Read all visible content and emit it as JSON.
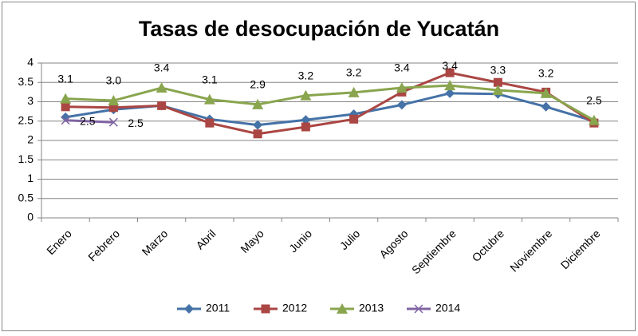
{
  "chart_data": {
    "type": "line",
    "title": "Tasas de desocupación de Yucatán",
    "categories": [
      "Enero",
      "Febrero",
      "Marzo",
      "Abril",
      "Mayo",
      "Junio",
      "Julio",
      "Agosto",
      "Septiembre",
      "Octubre",
      "Noviembre",
      "Diciembre"
    ],
    "ylim": [
      0,
      4
    ],
    "yticks": [
      0,
      0.5,
      1,
      1.5,
      2,
      2.5,
      3,
      3.5,
      4
    ],
    "grid": true,
    "legend": "bottom",
    "series": [
      {
        "name": "2011",
        "color": "#4572a7",
        "marker": "diamond",
        "values": [
          2.6,
          2.8,
          2.9,
          2.55,
          2.4,
          2.53,
          2.68,
          2.92,
          3.22,
          3.2,
          2.87,
          2.5
        ]
      },
      {
        "name": "2012",
        "color": "#aa4643",
        "marker": "square",
        "values": [
          2.87,
          2.85,
          2.9,
          2.45,
          2.17,
          2.35,
          2.55,
          3.25,
          3.75,
          3.5,
          3.25,
          2.45
        ]
      },
      {
        "name": "2013",
        "color": "#89a54e",
        "marker": "triangle",
        "values": [
          3.08,
          3.03,
          3.36,
          3.06,
          2.93,
          3.16,
          3.24,
          3.36,
          3.42,
          3.3,
          3.22,
          2.52
        ],
        "value_labels": [
          "3.1",
          "3.0",
          "3.4",
          "3.1",
          "2.9",
          "3.2",
          "3.2",
          "3.4",
          "3.4",
          "3.3",
          "3.2",
          "2.5"
        ]
      },
      {
        "name": "2014",
        "color": "#8064a2",
        "marker": "x",
        "values": [
          2.52,
          2.47,
          null,
          null,
          null,
          null,
          null,
          null,
          null,
          null,
          null,
          null
        ],
        "value_labels": [
          "2.5",
          "2.5",
          null,
          null,
          null,
          null,
          null,
          null,
          null,
          null,
          null,
          null
        ]
      }
    ]
  }
}
